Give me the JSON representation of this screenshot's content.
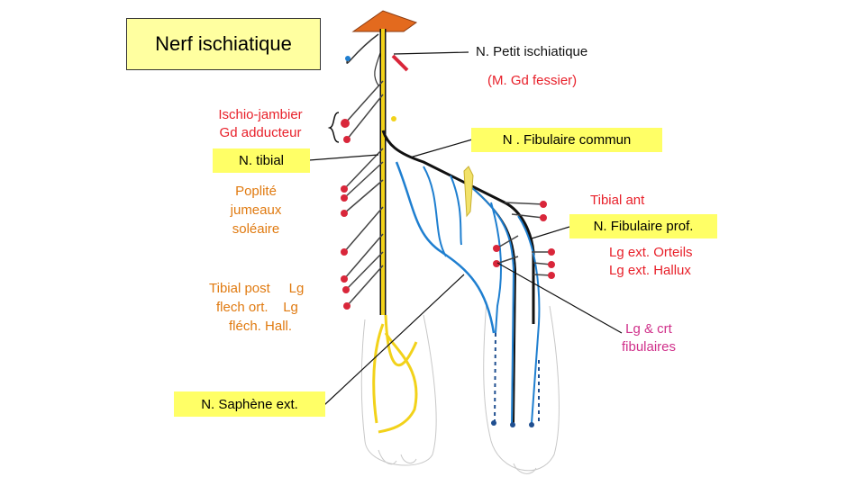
{
  "title": "Nerf ischiatique",
  "labels": {
    "petit_ischiatique": "N. Petit ischiatique",
    "gd_fessier": "(M. Gd fessier)",
    "ischio_jambier": "Ischio-jambier",
    "gd_adducteur": "Gd adducteur",
    "fibulaire_commun": "N . Fibulaire commun",
    "tibial": "N. tibial",
    "poplite": "Poplité",
    "jumeaux": "jumeaux",
    "soleaire": "soléaire",
    "tibial_ant": "Tibial ant",
    "fibulaire_prof": "N. Fibulaire prof.",
    "lg_ext_orteils": "Lg ext. Orteils",
    "lg_ext_hallux": "Lg ext. Hallux",
    "tibial_post_1": "Tibial post     Lg",
    "tibial_post_2": "flech ort.    Lg",
    "tibial_post_3": "fléch. Hall.",
    "lg_crt_1": "Lg & crt",
    "lg_crt_2": "fibulaires",
    "saphene_ext": "N. Saphène ext."
  },
  "colors": {
    "label_red": "#e8202a",
    "label_orange": "#e07a10",
    "label_magenta": "#d0308a",
    "highlight_box": "#ffff66",
    "title_box": "#ffffa0",
    "nerve_yellow": "#f2d21a",
    "nerve_blue": "#1f7fd0",
    "muscle_dot": "#d9263a",
    "gluteal_muscle": "#e36a1e"
  }
}
